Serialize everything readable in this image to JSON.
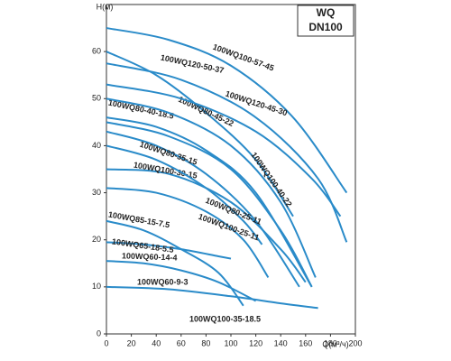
{
  "chart_data": {
    "type": "line",
    "title": "WQ",
    "subtitle": "DN100",
    "y_label": "H(м)",
    "x_label": "Q(м³/ч)",
    "xlim": [
      0,
      200
    ],
    "xticks": [
      0,
      20,
      40,
      60,
      80,
      100,
      120,
      140,
      160,
      180,
      200
    ],
    "ylim": [
      0,
      70
    ],
    "yticks": [
      0,
      10,
      20,
      30,
      40,
      50,
      60
    ],
    "color": "#2a8bc9",
    "series": [
      {
        "name": "100WQ100-57-45",
        "x": [
          0,
          50,
          100,
          150,
          193
        ],
        "values": [
          65,
          62.5,
          57,
          46,
          30
        ]
      },
      {
        "name": "100WQ120-50-37",
        "x": [
          0,
          60,
          120,
          170,
          193
        ],
        "values": [
          57.5,
          54,
          46,
          33,
          19.5
        ]
      },
      {
        "name": "100WQ80-45-22",
        "x": [
          0,
          40,
          80,
          120,
          150
        ],
        "values": [
          60,
          55,
          47,
          37,
          25
        ]
      },
      {
        "name": "100WQ120-45-30",
        "x": [
          0,
          60,
          120,
          165,
          188
        ],
        "values": [
          53,
          50,
          43,
          33,
          25
        ]
      },
      {
        "name": "100WQ80-40-18.5",
        "x": [
          0,
          40,
          80,
          120,
          165
        ],
        "values": [
          46,
          44,
          39,
          30,
          10
        ]
      },
      {
        "name": "100WQ100-40-22",
        "x": [
          0,
          50,
          100,
          140,
          168
        ],
        "values": [
          50,
          47,
          40,
          28,
          12
        ]
      },
      {
        "name": "100WQ80-35-15",
        "x": [
          0,
          40,
          80,
          120,
          155
        ],
        "values": [
          43,
          40,
          34,
          24,
          10
        ]
      },
      {
        "name": "100WQ100-30-15",
        "x": [
          0,
          50,
          100,
          140,
          160
        ],
        "values": [
          35,
          34,
          28,
          18,
          11
        ]
      },
      {
        "name": "100WQ80-25-11",
        "x": [
          0,
          40,
          80,
          110,
          125
        ],
        "values": [
          40,
          37,
          31,
          24,
          19
        ]
      },
      {
        "name": "100WQ100-25-11",
        "x": [
          0,
          40,
          80,
          110,
          130
        ],
        "values": [
          31,
          30,
          26,
          20,
          12
        ]
      },
      {
        "name": "100WQ85-15-7.5",
        "x": [
          0,
          30,
          60,
          90,
          110
        ],
        "values": [
          24,
          22,
          18,
          13,
          6
        ]
      },
      {
        "name": "100WQ65-18-5.5",
        "x": [
          0,
          30,
          60,
          90,
          100
        ],
        "values": [
          19.5,
          19,
          18,
          16.5,
          16
        ]
      },
      {
        "name": "100WQ60-14-4",
        "x": [
          0,
          30,
          60,
          90,
          120
        ],
        "values": [
          15.5,
          15,
          13.5,
          11,
          7
        ]
      },
      {
        "name": "100WQ60-9-3",
        "x": [
          0,
          50,
          100,
          140,
          170
        ],
        "values": [
          10,
          9.5,
          8,
          6.5,
          5.5
        ]
      },
      {
        "name": "100WQ100-35-18.5",
        "x": [
          0,
          50,
          100,
          140,
          165
        ],
        "values": [
          45,
          42,
          35,
          22,
          10
        ]
      }
    ]
  }
}
